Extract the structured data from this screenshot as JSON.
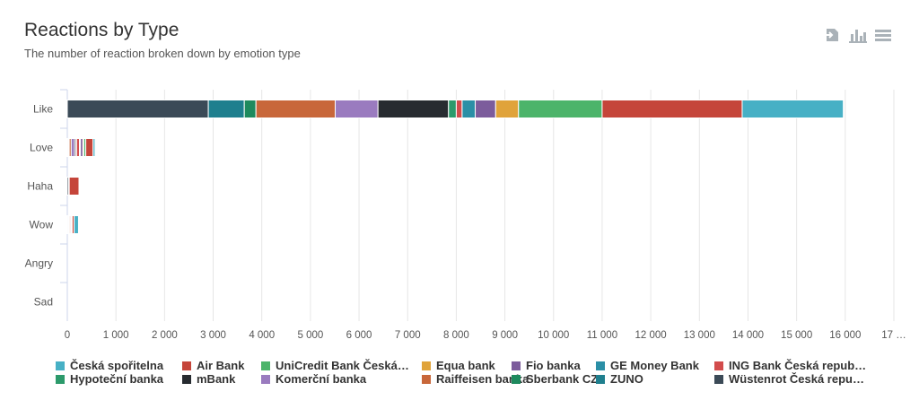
{
  "header": {
    "title": "Reactions by Type",
    "subtitle": "The number of reaction broken down by emotion type"
  },
  "toolbar": {
    "icons": [
      "export-icon",
      "chart-type-icon",
      "menu-icon"
    ],
    "icon_color": "#aab2b8"
  },
  "chart_data": {
    "type": "bar",
    "orientation": "horizontal",
    "stacked": true,
    "categories": [
      "Like",
      "Love",
      "Haha",
      "Wow",
      "Angry",
      "Sad"
    ],
    "x_ticks": [
      "0",
      "1 000",
      "2 000",
      "3 000",
      "4 000",
      "5 000",
      "6 000",
      "7 000",
      "8 000",
      "9 000",
      "10 000",
      "11 000",
      "12 000",
      "13 000",
      "14 000",
      "15 000",
      "16 000",
      "17 …"
    ],
    "xlim": [
      0,
      17000
    ],
    "grid": "vertical",
    "legend_position": "bottom",
    "series": [
      {
        "name": "Wüstenrot Česká repu…",
        "color": "#3b4a57",
        "values": [
          2900,
          20,
          30,
          20,
          0,
          0
        ]
      },
      {
        "name": "ZUNO",
        "color": "#1f7f8e",
        "values": [
          740,
          10,
          0,
          10,
          0,
          0
        ]
      },
      {
        "name": "Sberbank CZ",
        "color": "#1e8a5e",
        "values": [
          240,
          10,
          0,
          0,
          0,
          0
        ]
      },
      {
        "name": "Raiffeisen banka",
        "color": "#c8673a",
        "values": [
          1630,
          40,
          10,
          20,
          0,
          0
        ]
      },
      {
        "name": "Komerční banka",
        "color": "#9a7bbf",
        "values": [
          880,
          70,
          0,
          20,
          0,
          0
        ]
      },
      {
        "name": "mBank",
        "color": "#272b30",
        "values": [
          1450,
          30,
          0,
          0,
          0,
          0
        ]
      },
      {
        "name": "Hypoteční banka",
        "color": "#2c9a6b",
        "values": [
          160,
          10,
          0,
          0,
          0,
          0
        ]
      },
      {
        "name": "ING Bank Česká repub…",
        "color": "#d24c4c",
        "values": [
          120,
          60,
          0,
          10,
          0,
          0
        ]
      },
      {
        "name": "GE Money Bank",
        "color": "#2b8fa6",
        "values": [
          270,
          20,
          0,
          0,
          0,
          0
        ]
      },
      {
        "name": "Fio banka",
        "color": "#7c5c9c",
        "values": [
          420,
          50,
          0,
          10,
          0,
          0
        ]
      },
      {
        "name": "Equa bank",
        "color": "#e0a33a",
        "values": [
          470,
          20,
          0,
          0,
          0,
          0
        ]
      },
      {
        "name": "UniCredit Bank Česká…",
        "color": "#4cb46a",
        "values": [
          1720,
          40,
          0,
          10,
          0,
          0
        ]
      },
      {
        "name": "Air Bank",
        "color": "#c5453a",
        "values": [
          2880,
          150,
          200,
          40,
          0,
          0
        ]
      },
      {
        "name": "Česká spořitelna",
        "color": "#47b0c5",
        "values": [
          2080,
          40,
          0,
          90,
          0,
          0
        ]
      }
    ],
    "legend_order": [
      "Česká spořitelna",
      "Air Bank",
      "UniCredit Bank Česká…",
      "Equa bank",
      "Fio banka",
      "GE Money Bank",
      "ING Bank Česká repub…",
      "Hypoteční banka",
      "mBank",
      "Komerční banka",
      "Raiffeisen banka",
      "Sberbank CZ",
      "ZUNO",
      "Wüstenrot Česká repu…"
    ]
  }
}
